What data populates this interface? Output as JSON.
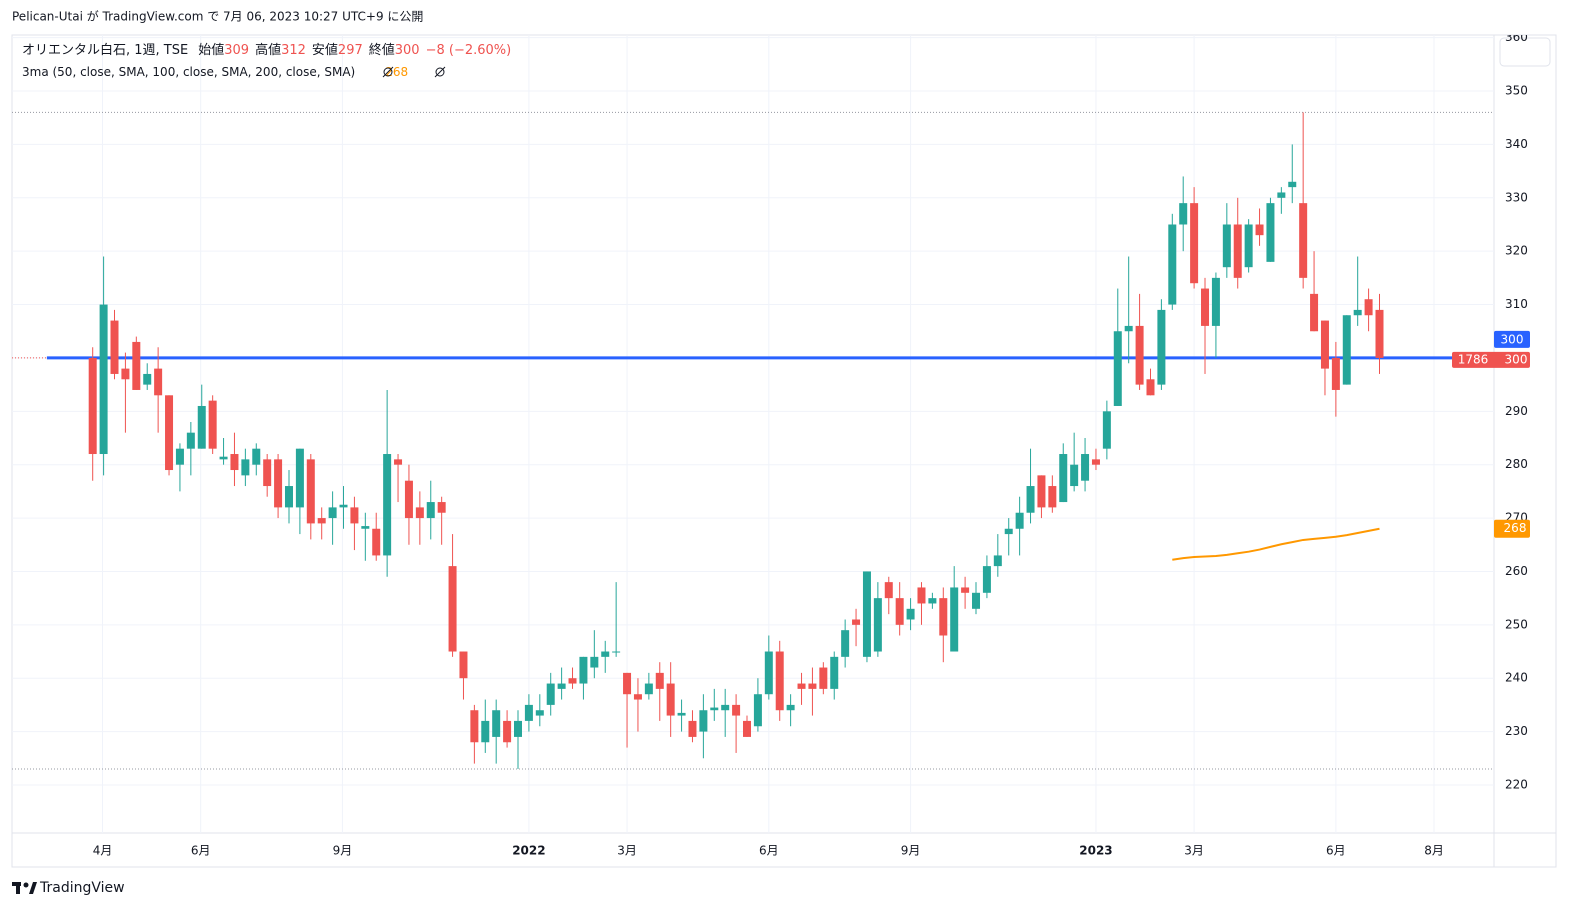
{
  "header": {
    "published": "Pelican-Utai が TradingView.com で 7月 06, 2023 10:27 UTC+9 に公開"
  },
  "footer": {
    "brand": "TradingView"
  },
  "chart_data": {
    "type": "candlestick",
    "symbol": "オリエンタル白石, 1週, TSE",
    "ohlc_legend": [
      {
        "label": "始値",
        "value": 309
      },
      {
        "label": "高値",
        "value": 312
      },
      {
        "label": "安値",
        "value": 297
      },
      {
        "label": "終値",
        "value": 300
      }
    ],
    "change_label": "−8 (−2.60%)",
    "up_color": "#26a69a",
    "down_color": "#ef5350",
    "x": [
      0,
      1,
      2,
      3,
      4,
      5,
      6,
      7,
      8,
      9,
      10,
      11,
      12,
      13,
      14,
      15,
      16,
      17,
      18,
      19,
      20,
      21,
      22,
      23,
      24,
      25,
      26,
      27,
      28,
      29,
      30,
      31,
      32,
      33,
      34,
      35,
      36,
      37,
      38,
      39,
      40,
      41,
      42,
      43,
      44,
      45,
      46,
      47,
      48,
      49,
      50,
      51,
      52,
      53,
      54,
      55,
      56,
      57,
      58,
      59,
      60,
      61,
      62,
      63,
      64,
      65,
      66,
      67,
      68,
      69,
      70,
      71,
      72,
      73,
      74,
      75,
      76,
      77,
      78,
      79,
      80,
      81,
      82,
      83,
      84,
      85,
      86,
      87,
      88,
      89,
      90,
      91,
      92,
      93,
      94,
      95,
      96,
      97,
      98,
      99,
      100,
      101,
      102,
      103,
      104,
      105,
      106,
      107,
      108,
      109,
      110,
      111,
      112,
      113,
      114,
      115,
      116,
      117,
      118
    ],
    "open": [
      300,
      282,
      307,
      298,
      303,
      295,
      298,
      293,
      280,
      283,
      283,
      292,
      281,
      282,
      278,
      280,
      281,
      281,
      272,
      272,
      281,
      270,
      270,
      272,
      272,
      268,
      268,
      263,
      281,
      277,
      272,
      270,
      273,
      261,
      245,
      234,
      228,
      229,
      232,
      229,
      232,
      233,
      235,
      238,
      240,
      239,
      242,
      244,
      245,
      241,
      237,
      237,
      241,
      239,
      233,
      232,
      230,
      234,
      234,
      235,
      232,
      231,
      237,
      245,
      234,
      239,
      239,
      242,
      238,
      244,
      251,
      244,
      245,
      258,
      255,
      251,
      257,
      254,
      255,
      245,
      257,
      253,
      256,
      261,
      267,
      268,
      271,
      278,
      276,
      273,
      276,
      277,
      281,
      283,
      291,
      305,
      306,
      296,
      295,
      310,
      325,
      329,
      313,
      306,
      317,
      325,
      317,
      325,
      318,
      330,
      332,
      329,
      312,
      307,
      300,
      295,
      308,
      311,
      309
    ],
    "high": [
      302,
      319,
      309,
      301,
      304,
      299,
      302,
      293,
      284,
      288,
      295,
      293,
      285,
      286,
      283,
      284,
      282,
      282,
      279,
      283,
      282,
      272,
      275,
      276,
      274,
      271,
      271,
      294,
      282,
      280,
      275,
      277,
      274,
      267,
      245,
      235,
      236,
      236,
      234,
      234,
      237,
      237,
      241,
      242,
      242,
      244,
      249,
      247,
      258,
      241,
      240,
      241,
      243,
      243,
      236,
      234,
      237,
      238,
      238,
      237,
      233,
      240,
      248,
      247,
      237,
      241,
      242,
      243,
      245,
      251,
      253,
      260,
      258,
      259,
      258,
      255,
      258,
      256,
      257,
      261,
      259,
      258,
      263,
      267,
      270,
      274,
      283,
      278,
      278,
      284,
      286,
      285,
      283,
      292,
      313,
      319,
      312,
      298,
      311,
      327,
      334,
      332,
      315,
      316,
      329,
      330,
      326,
      328,
      330,
      332,
      340,
      346,
      320,
      307,
      303,
      308,
      319,
      313,
      312
    ],
    "low": [
      277,
      278,
      296,
      286,
      294,
      294,
      286,
      278,
      275,
      278,
      283,
      282,
      280,
      276,
      276,
      278,
      274,
      270,
      269,
      267,
      266,
      266,
      265,
      268,
      264,
      262,
      262,
      259,
      273,
      265,
      265,
      266,
      265,
      244,
      236,
      224,
      226,
      224,
      227,
      223,
      230,
      231,
      233,
      236,
      238,
      236,
      240,
      241,
      244,
      227,
      230,
      236,
      232,
      229,
      230,
      228,
      225,
      232,
      229,
      226,
      229,
      230,
      236,
      232,
      231,
      235,
      233,
      237,
      236,
      242,
      246,
      243,
      244,
      252,
      248,
      249,
      250,
      253,
      243,
      245,
      253,
      252,
      255,
      259,
      263,
      263,
      269,
      270,
      271,
      273,
      275,
      275,
      279,
      281,
      291,
      299,
      294,
      293,
      294,
      309,
      320,
      313,
      297,
      300,
      315,
      313,
      316,
      321,
      318,
      327,
      329,
      313,
      305,
      293,
      289,
      295,
      306,
      305,
      297
    ],
    "close": [
      282,
      310,
      297,
      296,
      294,
      297,
      293,
      279,
      283,
      286,
      291,
      283,
      281.5,
      279,
      281,
      283,
      276,
      272,
      276,
      283,
      269,
      269,
      272,
      272.5,
      269,
      268.5,
      263,
      282,
      280,
      270,
      270,
      273,
      271,
      245,
      240,
      228,
      232,
      234,
      228,
      232,
      235,
      234,
      239,
      239,
      239,
      244,
      244,
      245,
      245,
      237,
      236,
      239,
      238,
      233,
      233.5,
      229,
      234,
      234.5,
      235,
      233,
      229,
      237,
      245,
      234,
      235,
      238,
      238,
      238,
      244,
      249,
      250,
      260,
      255,
      255,
      250,
      253,
      254,
      255,
      248,
      257,
      256,
      256,
      261,
      263,
      268,
      271,
      276,
      272,
      272,
      282,
      280,
      282,
      280,
      290,
      305,
      306,
      295,
      293,
      309,
      325,
      329,
      314,
      306,
      315,
      325,
      315,
      325,
      323,
      329,
      331,
      333,
      315,
      305,
      298,
      294,
      308,
      309,
      308,
      300
    ],
    "ma": {
      "name": "3ma (50, close, SMA, 100, close, SMA, 200, close, SMA)",
      "color": "#ff9800",
      "x": [
        99,
        100,
        101,
        102,
        103,
        104,
        105,
        106,
        107,
        108,
        109,
        110,
        111,
        112,
        113,
        114,
        115,
        116,
        117,
        118
      ],
      "values": [
        262.2,
        262.5,
        262.7,
        262.8,
        262.9,
        263.1,
        263.4,
        263.7,
        264.1,
        264.6,
        265.1,
        265.5,
        265.9,
        266.1,
        266.3,
        266.5,
        266.8,
        267.2,
        267.6,
        268
      ]
    },
    "horizontal_line": {
      "value": 300,
      "color": "#2962ff",
      "from_x": -4.2
    },
    "range_lines": [
      346,
      223
    ],
    "last_volume": "1786",
    "ylim": [
      211,
      360.5
    ],
    "yticks": [
      220,
      230,
      240,
      250,
      260,
      270,
      280,
      290,
      300,
      310,
      320,
      330,
      340,
      350,
      360
    ],
    "xlim": [
      -7.4,
      128.5
    ],
    "xticks": [
      {
        "value": 0.9,
        "label": "4月"
      },
      {
        "value": 9.9,
        "label": "6月"
      },
      {
        "value": 22.9,
        "label": "9月"
      },
      {
        "value": 40,
        "label": "2022",
        "strong": true
      },
      {
        "value": 49,
        "label": "3月"
      },
      {
        "value": 62,
        "label": "6月"
      },
      {
        "value": 75,
        "label": "9月"
      },
      {
        "value": 92,
        "label": "2023",
        "strong": true
      },
      {
        "value": 101,
        "label": "3月"
      },
      {
        "value": 114,
        "label": "6月"
      },
      {
        "value": 123,
        "label": "8月"
      }
    ],
    "grid": true
  }
}
